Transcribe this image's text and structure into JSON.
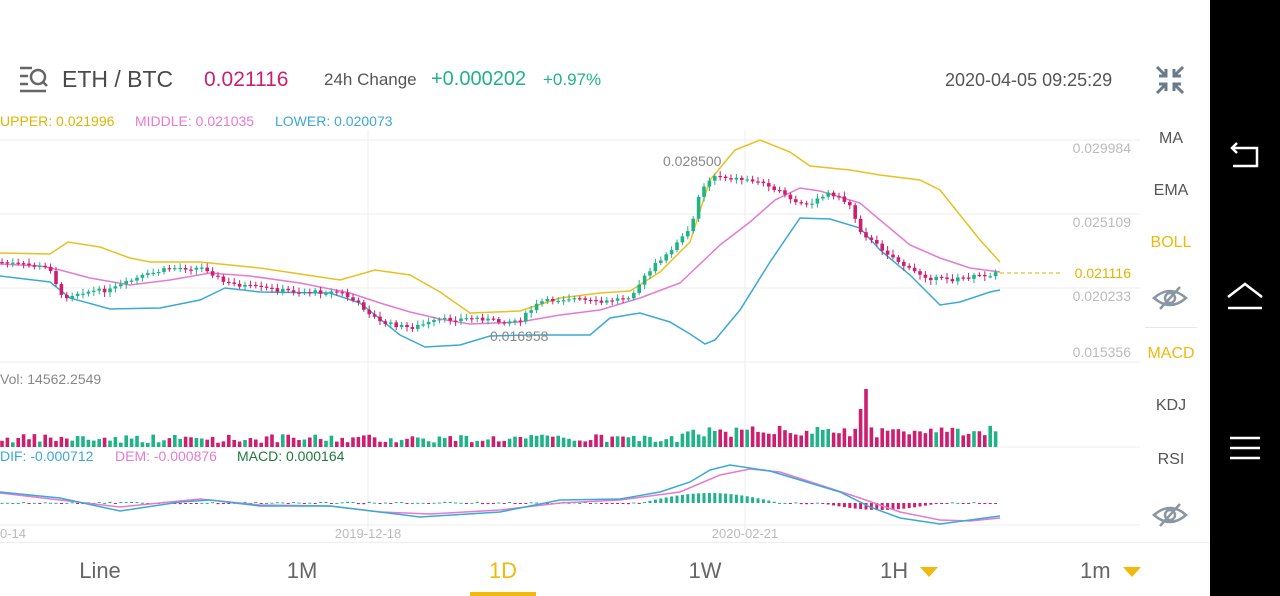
{
  "header": {
    "pair": "ETH / BTC",
    "price": "0.021116",
    "change_label": "24h Change",
    "change_value": "+0.000202",
    "change_pct": "+0.97%",
    "datetime": "2020-04-05 09:25:29",
    "list_icon": "search-list-icon",
    "collapse_icon": "collapse-arrows-icon"
  },
  "boll_legend": {
    "upper": "UPPER: 0.021996",
    "middle": "MIDDLE: 0.021035",
    "lower": "LOWER: 0.020073"
  },
  "macd_legend": {
    "dif": "DIF: -0.000712",
    "dem": "DEM: -0.000876",
    "macd": "MACD: 0.000164"
  },
  "volume_label": "Vol: 14562.2549",
  "price_axis": [
    "0.029984",
    "0.025109",
    "0.020233",
    "0.015356"
  ],
  "current_price_tag": "0.021116",
  "annotations": {
    "high": "0.028500",
    "low": "0.016958"
  },
  "date_axis": [
    "0-14",
    "2019-12-18",
    "2020-02-21"
  ],
  "side_menu": {
    "ma": "MA",
    "ema": "EMA",
    "boll": "BOLL",
    "macd": "MACD",
    "kdj": "KDJ",
    "rsi": "RSI",
    "eye_icon": "eye-slash-icon"
  },
  "tabs": [
    {
      "label": "Line"
    },
    {
      "label": "1M"
    },
    {
      "label": "1D"
    },
    {
      "label": "1W"
    },
    {
      "label": "1H"
    },
    {
      "label": "1m"
    }
  ],
  "active_tab": "1D",
  "colors": {
    "up": "#1fb38a",
    "down": "#cc1f6f",
    "upper": "#e8c021",
    "middle": "#e57ad0",
    "lower": "#3aa9d8",
    "accent": "#f0b90b"
  },
  "navbar_icons": [
    "back-icon",
    "home-icon",
    "menu-icon"
  ]
}
